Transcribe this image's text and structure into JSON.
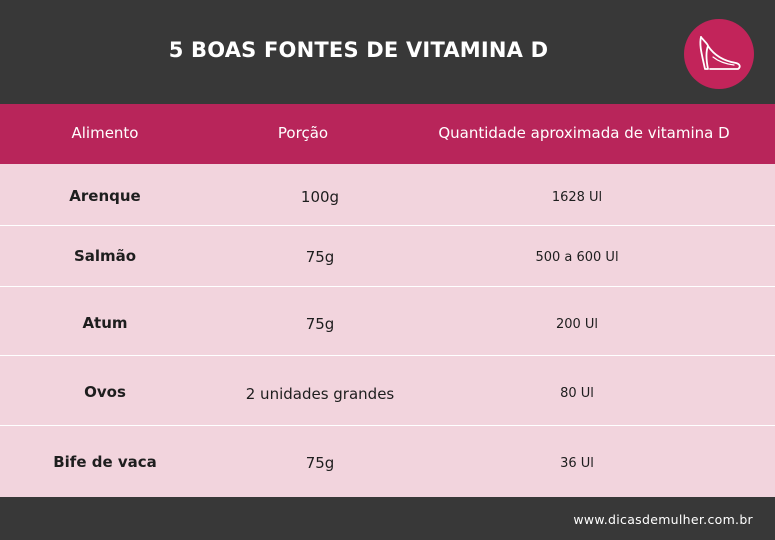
{
  "title": "5 BOAS FONTES DE VITAMINA D",
  "logo_icon": "high-heel-shoe-icon",
  "colors": {
    "dark": "#383838",
    "accent": "#b8255a",
    "row_bg": "#f2d4dd"
  },
  "table": {
    "headers": [
      "Alimento",
      "Porção",
      "Quantidade aproximada de vitamina D"
    ],
    "rows": [
      {
        "food": "Arenque",
        "portion": "100g",
        "qty": "1628 Ul"
      },
      {
        "food": "Salmão",
        "portion": "75g",
        "qty": "500 a 600 Ul"
      },
      {
        "food": "Atum",
        "portion": "75g",
        "qty": "200 Ul"
      },
      {
        "food": "Ovos",
        "portion": "2 unidades grandes",
        "qty": "80 Ul"
      },
      {
        "food": "Bife de vaca",
        "portion": "75g",
        "qty": "36 Ul"
      }
    ]
  },
  "footer": {
    "url": "www.dicasdemulher.com.br"
  }
}
